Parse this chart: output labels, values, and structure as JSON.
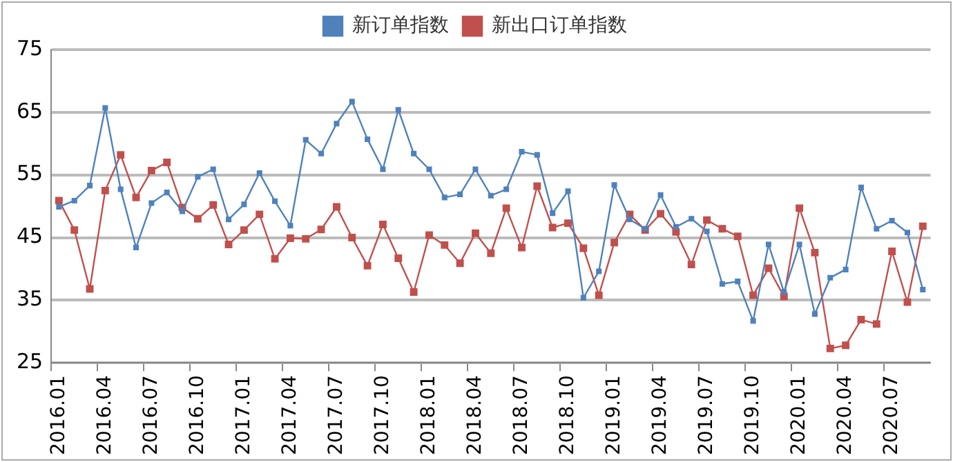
{
  "chart_data": {
    "type": "line",
    "categories": [
      "2016.01",
      null,
      null,
      "2016.04",
      null,
      null,
      "2016.07",
      null,
      null,
      "2016.10",
      null,
      null,
      "2017.01",
      null,
      null,
      "2017.04",
      null,
      null,
      "2017.07",
      null,
      null,
      "2017.10",
      null,
      null,
      "2018.01",
      null,
      null,
      "2018.04",
      null,
      null,
      "2018.07",
      null,
      null,
      "2018.10",
      null,
      null,
      "2019.01",
      null,
      null,
      "2019.04",
      null,
      null,
      "2019.07",
      null,
      null,
      "2019.10",
      null,
      null,
      "2020.01",
      null,
      null,
      "2020.04",
      null,
      null,
      "2020.07",
      null,
      null
    ],
    "series": [
      {
        "name": "新订单指数",
        "color": "#4f81bd",
        "values": [
          49.9,
          50.9,
          53.3,
          65.7,
          52.7,
          43.4,
          50.5,
          52.2,
          49.2,
          54.7,
          55.9,
          47.9,
          50.3,
          55.3,
          50.8,
          46.9,
          60.6,
          58.4,
          63.2,
          66.7,
          60.7,
          55.9,
          65.4,
          58.4,
          55.9,
          51.4,
          51.9,
          55.9,
          51.7,
          52.7,
          58.7,
          58.2,
          48.9,
          52.4,
          35.4,
          39.6,
          53.4,
          47.9,
          46.4,
          51.8,
          46.7,
          48.0,
          46.0,
          37.6,
          38.0,
          31.7,
          43.9,
          36.3,
          43.9,
          32.8,
          38.6,
          39.9,
          53.0,
          46.4,
          47.7,
          45.8,
          36.7
        ]
      },
      {
        "name": "新出口订单指数",
        "color": "#c0504d",
        "values": [
          50.9,
          46.2,
          36.8,
          52.5,
          58.2,
          51.4,
          55.7,
          57.0,
          49.8,
          48.0,
          50.2,
          43.9,
          46.2,
          48.7,
          41.6,
          44.9,
          44.8,
          46.3,
          49.9,
          45.0,
          40.5,
          47.1,
          41.7,
          36.3,
          45.4,
          43.8,
          40.9,
          45.7,
          42.5,
          49.7,
          43.4,
          53.2,
          46.6,
          47.3,
          43.3,
          35.8,
          44.2,
          48.7,
          46.2,
          48.8,
          45.9,
          40.7,
          47.8,
          46.4,
          45.2,
          35.8,
          40.1,
          35.6,
          49.7,
          42.6,
          27.3,
          27.8,
          31.9,
          31.2,
          42.8,
          34.7,
          46.8
        ]
      }
    ],
    "ylim": [
      25,
      75
    ],
    "yticks": [
      25,
      35,
      45,
      55,
      65,
      75
    ],
    "grid": "y",
    "legend": "top",
    "marker": "square",
    "line_style": "solid"
  }
}
